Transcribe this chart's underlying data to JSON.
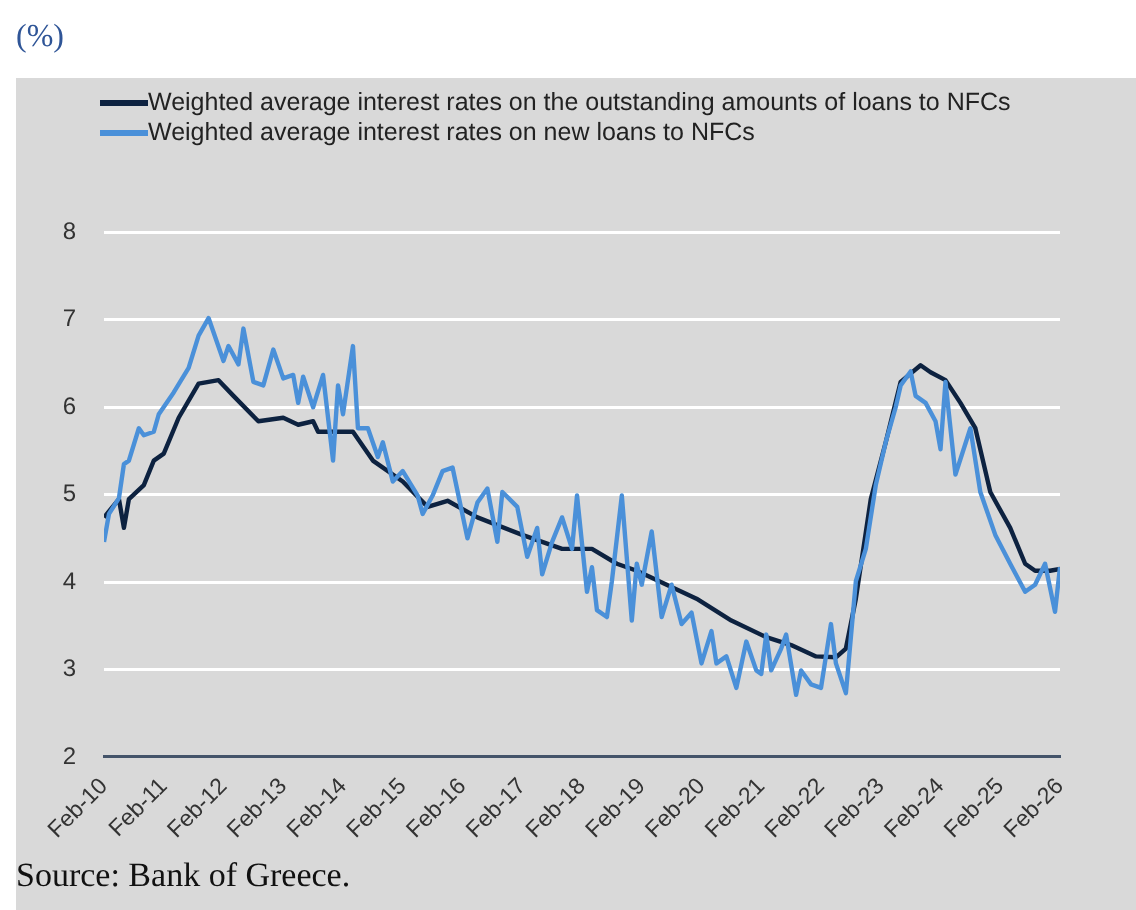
{
  "chart_data": {
    "type": "line",
    "annotations": [
      "(%)",
      "Source: Bank of Greece."
    ],
    "legend": "top left",
    "grid": "y",
    "ylim": [
      2,
      8
    ],
    "yticks": [
      2,
      3,
      4,
      5,
      6,
      7,
      8
    ],
    "xlim": [
      "2010-02",
      "2026-02"
    ],
    "xticks": [
      {
        "value": "2010-02",
        "label": "Feb-10"
      },
      {
        "value": "2011-02",
        "label": "Feb-11"
      },
      {
        "value": "2012-02",
        "label": "Feb-12"
      },
      {
        "value": "2013-02",
        "label": "Feb-13"
      },
      {
        "value": "2014-02",
        "label": "Feb-14"
      },
      {
        "value": "2015-02",
        "label": "Feb-15"
      },
      {
        "value": "2016-02",
        "label": "Feb-16"
      },
      {
        "value": "2017-02",
        "label": "Feb-17"
      },
      {
        "value": "2018-02",
        "label": "Feb-18"
      },
      {
        "value": "2019-02",
        "label": "Feb-19"
      },
      {
        "value": "2020-02",
        "label": "Feb-20"
      },
      {
        "value": "2021-02",
        "label": "Feb-21"
      },
      {
        "value": "2022-02",
        "label": "Feb-22"
      },
      {
        "value": "2023-02",
        "label": "Feb-23"
      },
      {
        "value": "2024-02",
        "label": "Feb-24"
      },
      {
        "value": "2025-02",
        "label": "Feb-25"
      },
      {
        "value": "2026-02",
        "label": "Feb-26"
      }
    ],
    "series": [
      {
        "name": "Weighted average interest rates on the outstanding amounts of loans to NFCs",
        "color": "#0d2240",
        "x": [
          "2010-02",
          "2010-05",
          "2010-06",
          "2010-07",
          "2010-10",
          "2010-12",
          "2011-02",
          "2011-05",
          "2011-09",
          "2012-01",
          "2012-04",
          "2012-09",
          "2013-02",
          "2013-05",
          "2013-08",
          "2013-09",
          "2014-04",
          "2014-08",
          "2015-02",
          "2015-07",
          "2015-11",
          "2016-05",
          "2017-02",
          "2017-10",
          "2018-04",
          "2018-09",
          "2019-01",
          "2020-01",
          "2020-08",
          "2021-03",
          "2021-08",
          "2022-01",
          "2022-05",
          "2022-07",
          "2022-09",
          "2022-12",
          "2023-03",
          "2023-06",
          "2023-10",
          "2023-12",
          "2024-03",
          "2024-06",
          "2024-09",
          "2024-12",
          "2025-04",
          "2025-07",
          "2025-09",
          "2025-12",
          "2026-02"
        ],
        "values": [
          4.74,
          4.95,
          4.62,
          4.95,
          5.11,
          5.39,
          5.47,
          5.88,
          6.27,
          6.31,
          6.13,
          5.84,
          5.88,
          5.8,
          5.84,
          5.72,
          5.72,
          5.39,
          5.15,
          4.86,
          4.93,
          4.74,
          4.54,
          4.38,
          4.38,
          4.21,
          4.13,
          3.81,
          3.56,
          3.37,
          3.28,
          3.15,
          3.14,
          3.24,
          3.81,
          4.95,
          5.6,
          6.29,
          6.48,
          6.4,
          6.31,
          6.05,
          5.76,
          5.03,
          4.62,
          4.21,
          4.13,
          4.13,
          4.15
        ]
      },
      {
        "name": "Weighted average interest rates on new loans to NFCs",
        "color": "#4a90d9",
        "x": [
          "2010-02",
          "2010-03",
          "2010-05",
          "2010-06",
          "2010-07",
          "2010-09",
          "2010-10",
          "2010-12",
          "2011-01",
          "2011-04",
          "2011-07",
          "2011-09",
          "2011-11",
          "2012-02",
          "2012-03",
          "2012-05",
          "2012-06",
          "2012-08",
          "2012-10",
          "2012-12",
          "2013-02",
          "2013-04",
          "2013-05",
          "2013-06",
          "2013-08",
          "2013-10",
          "2013-12",
          "2014-01",
          "2014-02",
          "2014-04",
          "2014-05",
          "2014-07",
          "2014-09",
          "2014-10",
          "2014-12",
          "2015-02",
          "2015-05",
          "2015-06",
          "2015-08",
          "2015-10",
          "2015-12",
          "2016-03",
          "2016-05",
          "2016-07",
          "2016-09",
          "2016-10",
          "2017-01",
          "2017-03",
          "2017-05",
          "2017-06",
          "2017-08",
          "2017-10",
          "2017-12",
          "2018-01",
          "2018-03",
          "2018-04",
          "2018-05",
          "2018-07",
          "2018-08",
          "2018-10",
          "2018-12",
          "2019-01",
          "2019-02",
          "2019-04",
          "2019-06",
          "2019-08",
          "2019-10",
          "2019-12",
          "2020-02",
          "2020-04",
          "2020-05",
          "2020-07",
          "2020-09",
          "2020-11",
          "2021-01",
          "2021-02",
          "2021-03",
          "2021-04",
          "2021-06",
          "2021-07",
          "2021-09",
          "2021-10",
          "2021-12",
          "2022-02",
          "2022-04",
          "2022-05",
          "2022-07",
          "2022-09",
          "2022-11",
          "2023-01",
          "2023-03",
          "2023-05",
          "2023-06",
          "2023-08",
          "2023-09",
          "2023-11",
          "2024-01",
          "2024-02",
          "2024-03",
          "2024-05",
          "2024-08",
          "2024-10",
          "2025-01",
          "2025-04",
          "2025-07",
          "2025-09",
          "2025-11",
          "2026-01",
          "2026-02"
        ],
        "values": [
          4.46,
          4.78,
          4.96,
          5.35,
          5.39,
          5.76,
          5.68,
          5.72,
          5.92,
          6.17,
          6.45,
          6.82,
          7.02,
          6.53,
          6.7,
          6.49,
          6.9,
          6.29,
          6.25,
          6.66,
          6.33,
          6.37,
          6.05,
          6.35,
          6.0,
          6.37,
          5.39,
          6.25,
          5.92,
          6.7,
          5.76,
          5.76,
          5.43,
          5.6,
          5.15,
          5.27,
          4.99,
          4.78,
          4.99,
          5.27,
          5.31,
          4.5,
          4.91,
          5.07,
          4.46,
          5.03,
          4.86,
          4.29,
          4.62,
          4.09,
          4.46,
          4.74,
          4.38,
          4.99,
          3.89,
          4.17,
          3.68,
          3.6,
          4.01,
          4.99,
          3.56,
          4.21,
          3.97,
          4.58,
          3.6,
          3.97,
          3.52,
          3.65,
          3.07,
          3.44,
          3.07,
          3.15,
          2.79,
          3.32,
          2.99,
          2.95,
          3.4,
          2.99,
          3.24,
          3.4,
          2.71,
          2.99,
          2.83,
          2.79,
          3.52,
          3.07,
          2.73,
          4.01,
          4.38,
          5.11,
          5.6,
          6.0,
          6.25,
          6.41,
          6.13,
          6.05,
          5.84,
          5.52,
          6.29,
          5.23,
          5.76,
          5.03,
          4.54,
          4.21,
          3.89,
          3.97,
          4.21,
          3.66,
          4.17
        ]
      }
    ]
  }
}
